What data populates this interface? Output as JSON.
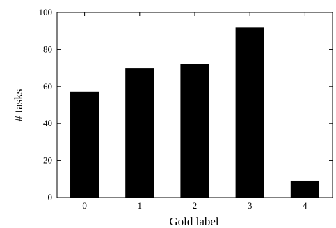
{
  "chart_data": {
    "type": "bar",
    "title": "",
    "xlabel": "Gold label",
    "ylabel": "# tasks",
    "categories": [
      "0",
      "1",
      "2",
      "3",
      "4"
    ],
    "values": [
      57,
      70,
      72,
      92,
      9
    ],
    "ylim": [
      0,
      100
    ],
    "yticks": [
      0,
      20,
      40,
      60,
      80,
      100
    ],
    "grid": false,
    "legend": "none",
    "bar_color": "#000000"
  }
}
